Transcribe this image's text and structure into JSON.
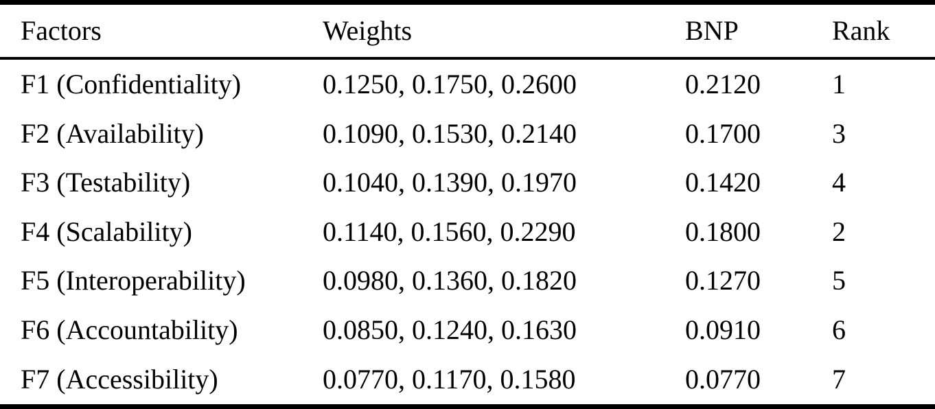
{
  "table": {
    "title": "fuzzy-weights-bnp-rank-table",
    "columns": {
      "factors": "Factors",
      "weights": "Weights",
      "bnp": "BNP",
      "rank": "Rank"
    },
    "rows": [
      {
        "factor": "F1 (Confidentiality)",
        "weights": "0.1250, 0.1750, 0.2600",
        "bnp": "0.2120",
        "rank": "1"
      },
      {
        "factor": "F2 (Availability)",
        "weights": "0.1090, 0.1530, 0.2140",
        "bnp": "0.1700",
        "rank": "3"
      },
      {
        "factor": "F3 (Testability)",
        "weights": "0.1040, 0.1390, 0.1970",
        "bnp": "0.1420",
        "rank": "4"
      },
      {
        "factor": "F4 (Scalability)",
        "weights": "0.1140, 0.1560, 0.2290",
        "bnp": "0.1800",
        "rank": "2"
      },
      {
        "factor": "F5 (Interoperability)",
        "weights": "0.0980, 0.1360, 0.1820",
        "bnp": "0.1270",
        "rank": "5"
      },
      {
        "factor": "F6 (Accountability)",
        "weights": "0.0850, 0.1240, 0.1630",
        "bnp": "0.0910",
        "rank": "6"
      },
      {
        "factor": "F7 (Accessibility)",
        "weights": "0.0770, 0.1170, 0.1580",
        "bnp": "0.0770",
        "rank": "7"
      }
    ]
  }
}
